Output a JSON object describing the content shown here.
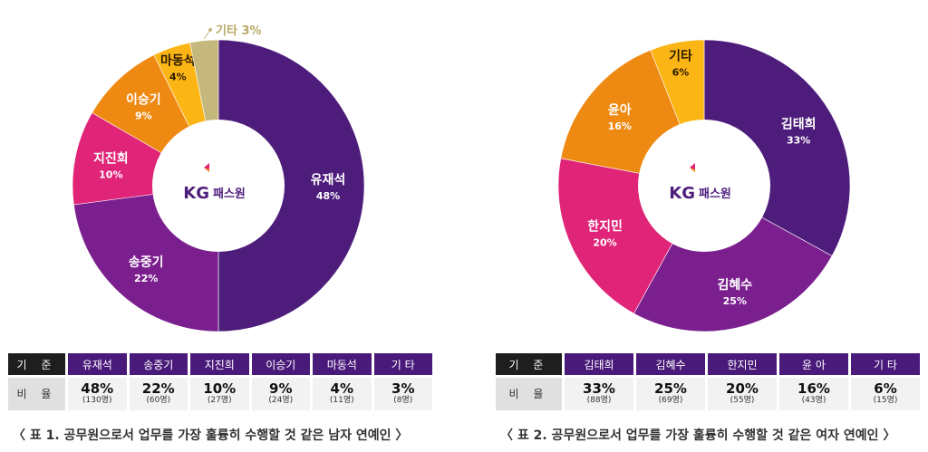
{
  "chart_data": [
    {
      "type": "pie",
      "center_logo": {
        "mark": "KG",
        "text": "패스원"
      },
      "slices": [
        {
          "name": "유재석",
          "value": 48,
          "label": "48%",
          "color": "#4e1d7c"
        },
        {
          "name": "송중기",
          "value": 22,
          "label": "22%",
          "color": "#7b1f8f"
        },
        {
          "name": "지진희",
          "value": 10,
          "label": "10%",
          "color": "#e02477"
        },
        {
          "name": "이승기",
          "value": 9,
          "label": "9%",
          "color": "#ee8a12"
        },
        {
          "name": "마동석",
          "value": 4,
          "label": "4%",
          "color": "#fbb514"
        },
        {
          "name": "기타",
          "value": 3,
          "label": "3%",
          "color": "#c4b87d"
        }
      ],
      "table": {
        "row_header_label": "기 준",
        "row_value_label": "비 율",
        "columns": [
          {
            "name": "유재석",
            "pct": "48%",
            "count": "(130명)"
          },
          {
            "name": "송중기",
            "pct": "22%",
            "count": "(60명)"
          },
          {
            "name": "지진희",
            "pct": "10%",
            "count": "(27명)"
          },
          {
            "name": "이승기",
            "pct": "9%",
            "count": "(24명)"
          },
          {
            "name": "마동석",
            "pct": "4%",
            "count": "(11명)"
          },
          {
            "name": "기 타",
            "pct": "3%",
            "count": "(8명)"
          }
        ]
      },
      "caption": "〈 표 1. 공무원으로서 업무를 가장 훌륭히 수행할 것 같은 남자 연예인 〉"
    },
    {
      "type": "pie",
      "center_logo": {
        "mark": "KG",
        "text": "패스원"
      },
      "slices": [
        {
          "name": "김태희",
          "value": 33,
          "label": "33%",
          "color": "#4e1d7c"
        },
        {
          "name": "김혜수",
          "value": 25,
          "label": "25%",
          "color": "#7b1f8f"
        },
        {
          "name": "한지민",
          "value": 20,
          "label": "20%",
          "color": "#e02477"
        },
        {
          "name": "윤아",
          "value": 16,
          "label": "16%",
          "color": "#ee8a12"
        },
        {
          "name": "기타",
          "value": 6,
          "label": "6%",
          "color": "#fbb514"
        }
      ],
      "table": {
        "row_header_label": "기 준",
        "row_value_label": "비 율",
        "columns": [
          {
            "name": "김태희",
            "pct": "33%",
            "count": "(88명)"
          },
          {
            "name": "김혜수",
            "pct": "25%",
            "count": "(69명)"
          },
          {
            "name": "한지민",
            "pct": "20%",
            "count": "(55명)"
          },
          {
            "name": "윤 아",
            "pct": "16%",
            "count": "(43명)"
          },
          {
            "name": "기 타",
            "pct": "6%",
            "count": "(15명)"
          }
        ]
      },
      "caption": "〈 표 2. 공무원으로서 업무를 가장 훌륭히 수행할 것 같은 여자 연예인 〉"
    }
  ]
}
